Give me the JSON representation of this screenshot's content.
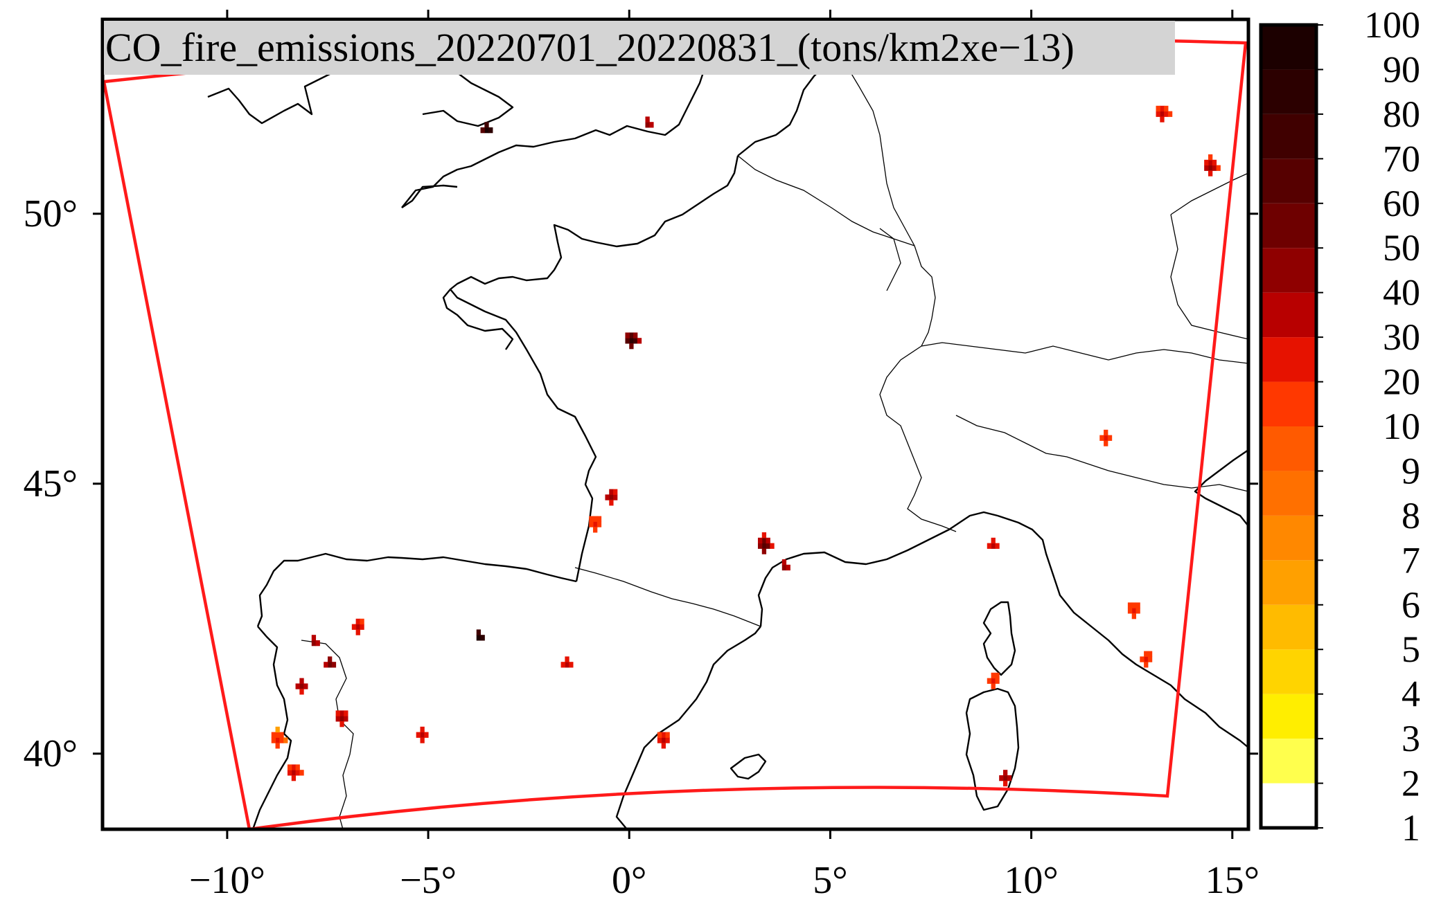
{
  "title": "CO_fire_emissions_20220701_20220831_(tons/km2xe−13)",
  "lon_ticks": [
    {
      "value": -10,
      "label": "−10°"
    },
    {
      "value": -5,
      "label": "−5°"
    },
    {
      "value": 0,
      "label": "0°"
    },
    {
      "value": 5,
      "label": "5°"
    },
    {
      "value": 10,
      "label": "10°"
    },
    {
      "value": 15,
      "label": "15°"
    }
  ],
  "lat_ticks": [
    {
      "value": 40,
      "label": "40°"
    },
    {
      "value": 45,
      "label": "45°"
    },
    {
      "value": 50,
      "label": "50°"
    }
  ],
  "colorbar": {
    "levels": [
      "1",
      "2",
      "3",
      "4",
      "5",
      "6",
      "7",
      "8",
      "9",
      "10",
      "20",
      "30",
      "40",
      "50",
      "60",
      "70",
      "80",
      "90",
      "100"
    ],
    "colors": [
      "#ffffff",
      "#ffff4d",
      "#ffee00",
      "#ffd400",
      "#ffbb00",
      "#ffa000",
      "#ff8800",
      "#ff7000",
      "#ff5a00",
      "#ff3800",
      "#e61200",
      "#b80000",
      "#8f0000",
      "#6e0000",
      "#560000",
      "#400000",
      "#2c0000",
      "#1c0000"
    ]
  },
  "chart_data": {
    "type": "heatmap",
    "title": "CO_fire_emissions_20220701_20220831_(tons/km2xe−13)",
    "units": "tons/km2xe−13",
    "xlim": [
      -13.1,
      15.4
    ],
    "ylim": [
      38.6,
      53.6
    ],
    "domain_boundary_color": "#ff1a1a",
    "hotspots": [
      {
        "lon": -7.9,
        "lat": 42.0,
        "level": 40
      },
      {
        "lon": -7.5,
        "lat": 41.6,
        "level": 50
      },
      {
        "lon": -8.2,
        "lat": 41.2,
        "level": 40
      },
      {
        "lon": -6.8,
        "lat": 42.3,
        "level": 30
      },
      {
        "lon": -7.2,
        "lat": 40.6,
        "level": 40
      },
      {
        "lon": -8.4,
        "lat": 39.6,
        "level": 30
      },
      {
        "lon": -8.8,
        "lat": 40.2,
        "level": 20
      },
      {
        "lon": -3.8,
        "lat": 42.1,
        "level": 90
      },
      {
        "lon": -1.6,
        "lat": 41.6,
        "level": 30
      },
      {
        "lon": -5.2,
        "lat": 40.3,
        "level": 30
      },
      {
        "lon": -0.5,
        "lat": 44.7,
        "level": 40
      },
      {
        "lon": -0.9,
        "lat": 44.2,
        "level": 20
      },
      {
        "lon": 0.0,
        "lat": 47.6,
        "level": 80
      },
      {
        "lon": 3.3,
        "lat": 43.8,
        "level": 60
      },
      {
        "lon": 3.8,
        "lat": 43.4,
        "level": 40
      },
      {
        "lon": 9.0,
        "lat": 43.8,
        "level": 30
      },
      {
        "lon": 11.8,
        "lat": 45.8,
        "level": 20
      },
      {
        "lon": 12.8,
        "lat": 41.7,
        "level": 20
      },
      {
        "lon": 12.5,
        "lat": 42.6,
        "level": 20
      },
      {
        "lon": 13.2,
        "lat": 51.8,
        "level": 30
      },
      {
        "lon": 14.4,
        "lat": 50.8,
        "level": 40
      },
      {
        "lon": 0.4,
        "lat": 51.6,
        "level": 40
      },
      {
        "lon": -3.6,
        "lat": 51.5,
        "level": 90
      },
      {
        "lon": 9.3,
        "lat": 39.5,
        "level": 40
      },
      {
        "lon": 9.0,
        "lat": 41.3,
        "level": 20
      },
      {
        "lon": 0.8,
        "lat": 40.2,
        "level": 30
      }
    ]
  }
}
